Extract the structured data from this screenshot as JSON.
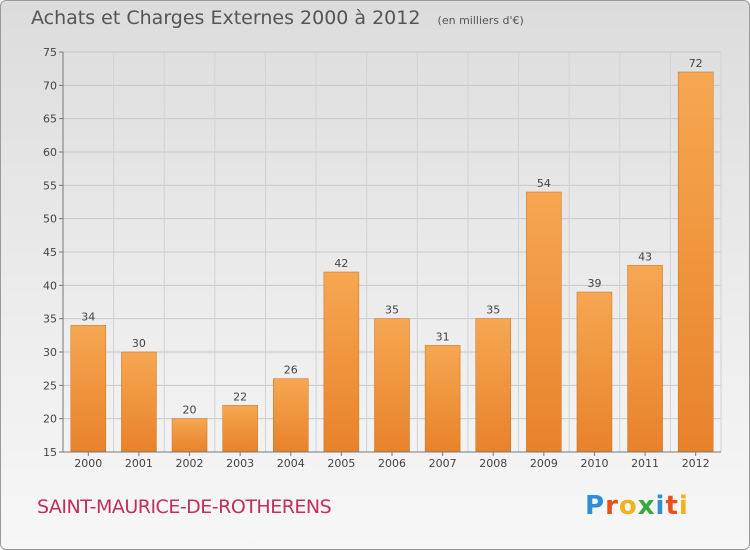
{
  "header": {
    "title": "Achats et Charges Externes 2000 à 2012",
    "subtitle": "(en milliers d'€)"
  },
  "commune": "SAINT-MAURICE-DE-ROTHERENS",
  "logo": {
    "letters": [
      {
        "char": "P",
        "color": "#2e8fd6"
      },
      {
        "char": "r",
        "color": "#e8501a"
      },
      {
        "char": "o",
        "color": "#f2b21a"
      },
      {
        "char": "x",
        "color": "#3aa83a"
      },
      {
        "char": "i",
        "color": "#2e8fd6"
      },
      {
        "char": "t",
        "color": "#e8501a"
      },
      {
        "char": "i",
        "color": "#f2b21a"
      }
    ]
  },
  "chart_data": {
    "type": "bar",
    "categories": [
      "2000",
      "2001",
      "2002",
      "2003",
      "2004",
      "2005",
      "2006",
      "2007",
      "2008",
      "2009",
      "2010",
      "2011",
      "2012"
    ],
    "values": [
      34,
      30,
      20,
      22,
      26,
      42,
      35,
      31,
      35,
      54,
      39,
      43,
      72
    ],
    "ylim": [
      15,
      75
    ],
    "yticks": [
      15,
      20,
      25,
      30,
      35,
      40,
      45,
      50,
      55,
      60,
      65,
      70,
      75
    ],
    "grid": true,
    "bar_color": "#e8822a",
    "bar_color_light": "#f6a752",
    "legend": "none"
  }
}
